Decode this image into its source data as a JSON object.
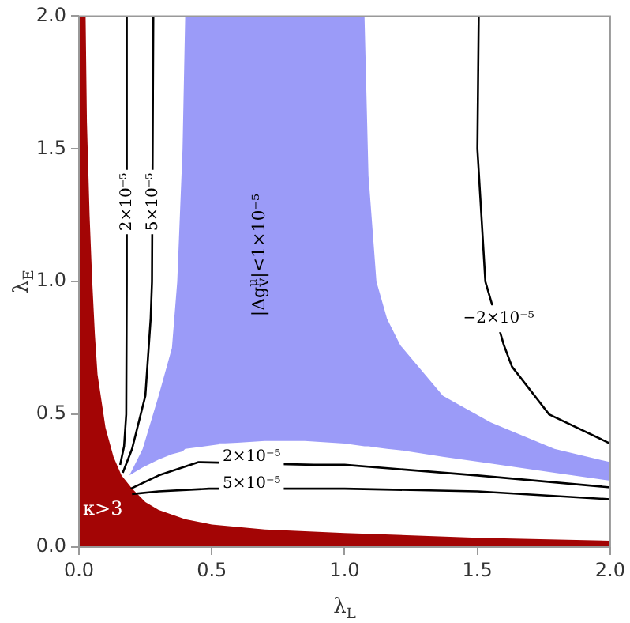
{
  "chart_data": {
    "type": "line",
    "xlabel": "λ$_{L}$",
    "ylabel": "λ$_{E}$",
    "xlim": [
      0,
      2
    ],
    "ylim": [
      0,
      2
    ],
    "xticks": [
      {
        "value": 0,
        "label": "0.0"
      },
      {
        "value": 0.5,
        "label": "0.5"
      },
      {
        "value": 1,
        "label": "1.0"
      },
      {
        "value": 1.5,
        "label": "1.5"
      },
      {
        "value": 2,
        "label": "2.0"
      }
    ],
    "yticks": [
      {
        "value": 0,
        "label": "0.0"
      },
      {
        "value": 0.5,
        "label": "0.5"
      },
      {
        "value": 1,
        "label": "1.0"
      },
      {
        "value": 1.5,
        "label": "1.5"
      },
      {
        "value": 2,
        "label": "2.0"
      }
    ],
    "grid": false,
    "legend": false,
    "marker": "none",
    "line_style": "solid",
    "series": [
      {
        "type": "area",
        "color": "#a30505",
        "x": [
          0,
          0.025,
          0.03,
          0.04,
          0.05,
          0.06,
          0.07,
          0.1,
          0.13,
          0.16,
          0.2,
          0.25,
          0.3,
          0.4,
          0.5,
          0.7,
          1.0,
          1.5,
          2.0
        ],
        "values": [
          2.0,
          2.0,
          1.6,
          1.25,
          1.0,
          0.8,
          0.65,
          0.45,
          0.34,
          0.27,
          0.22,
          0.17,
          0.14,
          0.105,
          0.085,
          0.066,
          0.053,
          0.035,
          0.024
        ]
      },
      {
        "type": "area",
        "color": "#9b9bf8",
        "x": [
          0.19,
          0.24,
          0.3,
          0.35,
          0.37,
          0.39,
          0.4,
          0.55,
          0.7,
          0.85,
          1.0,
          1.075,
          1.09,
          1.12,
          1.16,
          1.21,
          1.37,
          1.55,
          1.79,
          2.0
        ],
        "values": [
          null,
          null,
          null,
          null,
          null,
          null,
          null,
          null,
          null,
          null,
          null,
          null,
          null,
          null,
          null,
          null,
          null,
          null,
          null,
          null
        ],
        "lower": [
          0.27,
          0.3,
          0.33,
          0.35,
          0.355,
          0.36,
          0.37,
          0.39,
          0.4,
          0.4,
          0.39,
          0.38,
          0.38,
          0.375,
          0.37,
          0.365,
          0.34,
          0.315,
          0.28,
          0.25
        ],
        "upper": [
          0.27,
          0.37,
          0.57,
          0.75,
          1.0,
          1.5,
          2.0,
          2.0,
          2.0,
          2.0,
          2.0,
          2.0,
          1.4,
          1.0,
          0.86,
          0.76,
          0.57,
          0.47,
          0.37,
          0.32
        ]
      },
      {
        "color": "#000000",
        "x": [
          0.18,
          0.18,
          0.178,
          0.17,
          0.155
        ],
        "values": [
          2.0,
          1.0,
          0.5,
          0.38,
          0.31
        ]
      },
      {
        "color": "#000000",
        "x": [
          0.28,
          0.275,
          0.27,
          0.25,
          0.2,
          0.165
        ],
        "values": [
          2.0,
          1.0,
          0.86,
          0.57,
          0.37,
          0.28
        ]
      },
      {
        "color": "#000000",
        "x": [
          0.195,
          0.3,
          0.45,
          0.885,
          1.0,
          1.5,
          2.0
        ],
        "values": [
          0.22,
          0.27,
          0.32,
          0.31,
          0.31,
          0.27,
          0.225
        ]
      },
      {
        "color": "#000000",
        "x": [
          0.2,
          0.3,
          0.49,
          0.885,
          1.0,
          1.5,
          2.0
        ],
        "values": [
          0.2,
          0.21,
          0.22,
          0.22,
          0.22,
          0.21,
          0.18
        ]
      },
      {
        "color": "#000000",
        "x": [
          1.505,
          1.5,
          1.53,
          1.6,
          1.63,
          1.77,
          2.0
        ],
        "values": [
          2.0,
          1.5,
          1.0,
          0.76,
          0.68,
          0.5,
          0.39
        ]
      }
    ],
    "annotations": [
      {
        "text": "2×10⁻⁵",
        "x": 0.18,
        "y": 1.3
      },
      {
        "text": "5×10⁻⁵",
        "x": 0.28,
        "y": 1.3
      },
      "|Δg$^{μ}$$_{V}$|<1×10⁻⁵",
      {
        "text": "2×10⁻⁵",
        "x": 0.65,
        "y": 0.34
      },
      {
        "text": "5×10⁻⁵",
        "x": 0.65,
        "y": 0.24
      },
      "−2×10⁻⁵",
      "κ>3"
    ]
  }
}
